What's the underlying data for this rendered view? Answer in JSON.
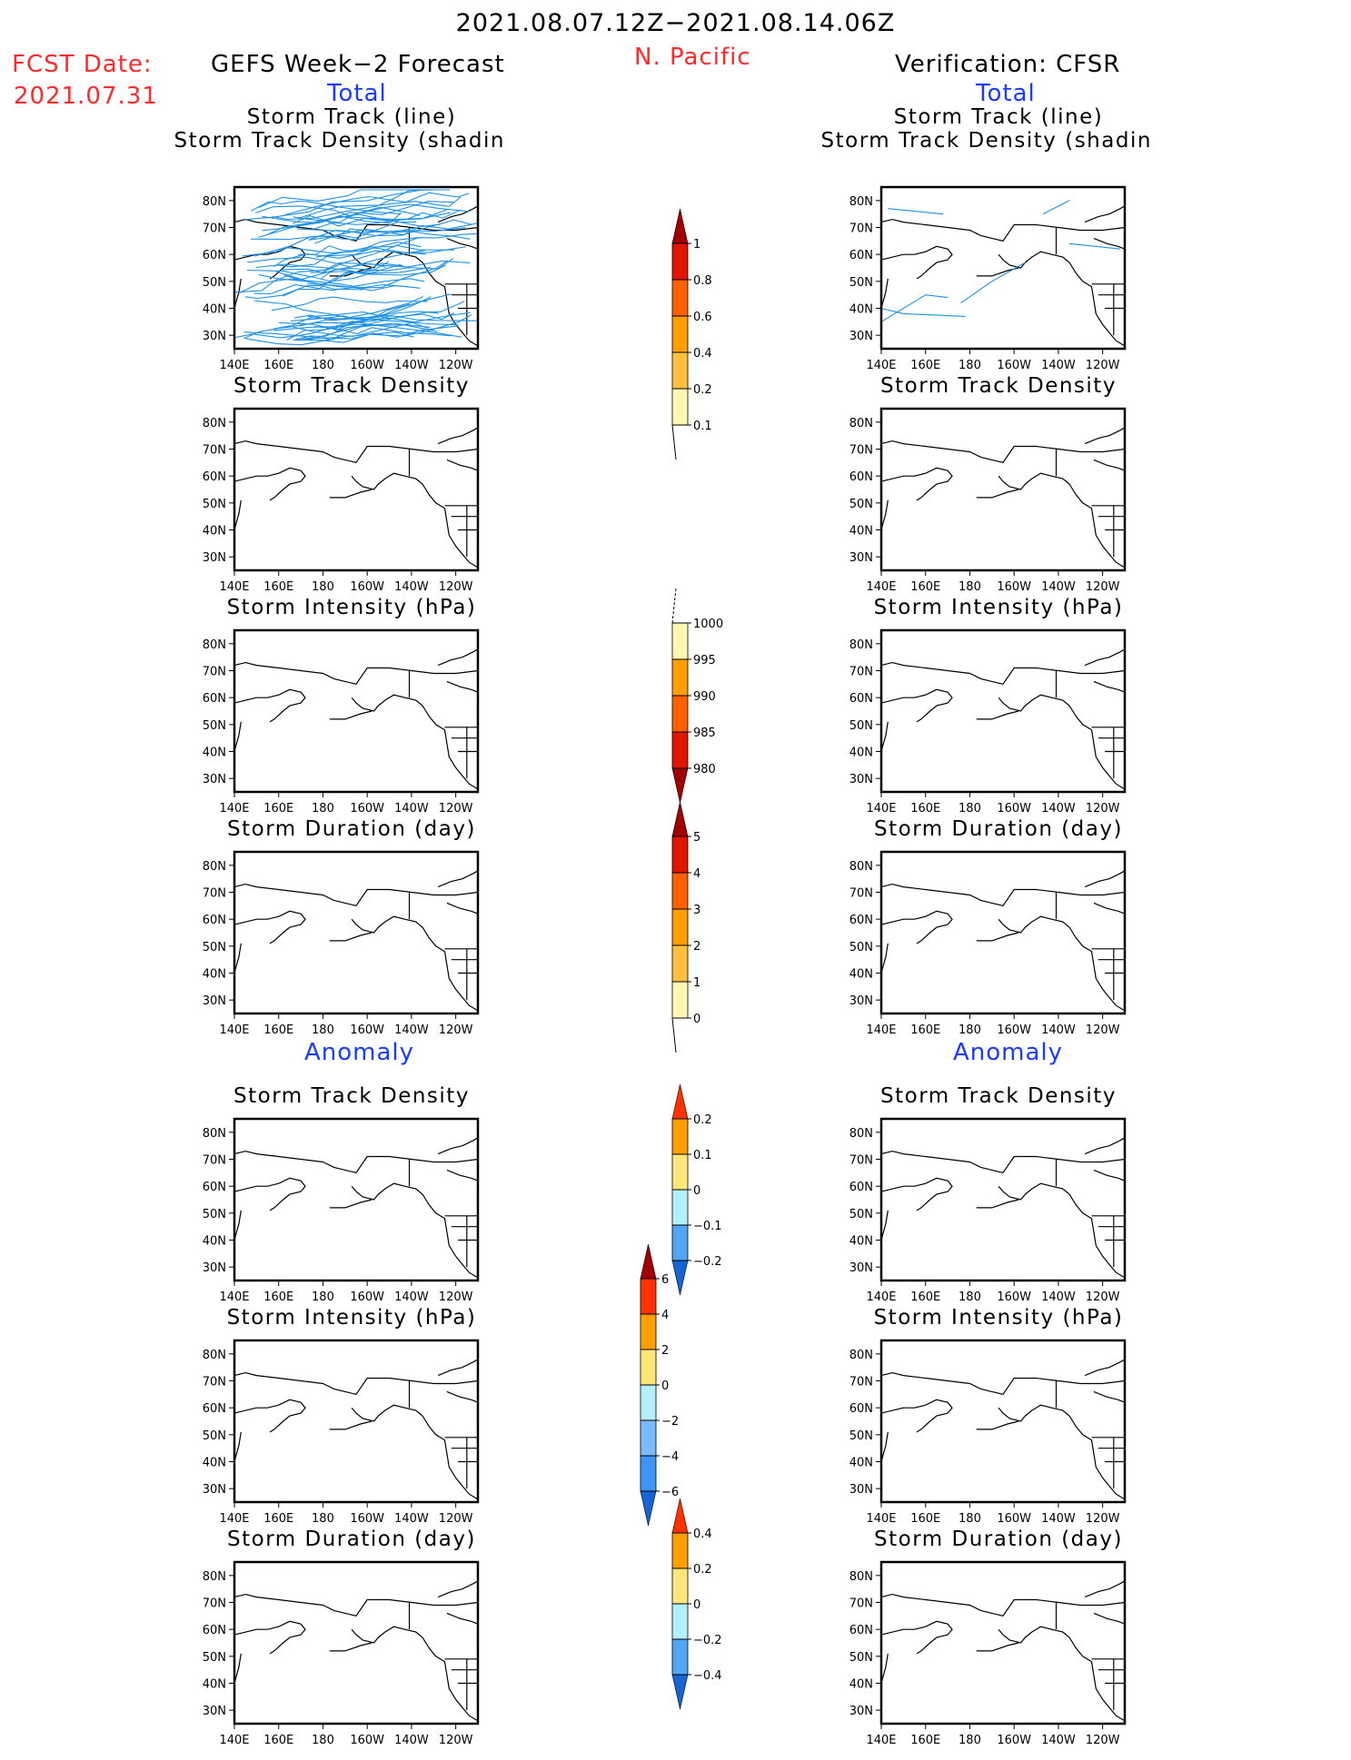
{
  "header": {
    "period": "2021.08.07.12Z−2021.08.14.06Z",
    "region": "N. Pacific",
    "fcst_label": "FCST Date:",
    "fcst_date": "2021.07.31",
    "left_title": "GEFS Week−2 Forecast",
    "right_title": "Verification: CFSR",
    "total_label": "Total",
    "anomaly_label": "Anomaly"
  },
  "colors": {
    "total_scale": [
      "#fff8b4",
      "#ffc03e",
      "#ffa000",
      "#ff6000",
      "#e01400",
      "#a00000"
    ],
    "anom_scale": [
      "#1764d4",
      "#53a5f5",
      "#b4f0fa",
      "#ffe67a",
      "#ffa000",
      "#ff3200"
    ],
    "int_anom_scale": [
      "#1764d4",
      "#3c96f5",
      "#7bbaff",
      "#b4f0fa",
      "#ffe67a",
      "#ffa000",
      "#ff3200",
      "#a00000"
    ],
    "track_line": "#1e90e6",
    "coast": "#000000"
  },
  "chart_data": {
    "type": "heatmap",
    "map_axes": {
      "x_ticks": [
        "140E",
        "160E",
        "180",
        "160W",
        "140W",
        "120W"
      ],
      "y_ticks": [
        "80N",
        "70N",
        "60N",
        "50N",
        "40N",
        "30N"
      ],
      "lon_range": [
        140,
        250
      ],
      "lat_range": [
        25,
        85
      ]
    },
    "panels": [
      {
        "id": "fc-track",
        "column": "GEFS Week-2 Forecast",
        "section": "Total",
        "title1": "Storm Track (line)",
        "title2": "Storm Track Density (shading)",
        "field": "density",
        "tracks": "many"
      },
      {
        "id": "ob-track",
        "column": "Verification: CFSR",
        "section": "Total",
        "title1": "Storm Track (line)",
        "title2": "Storm Track Density (shading)",
        "field": "density",
        "tracks": "few"
      },
      {
        "id": "fc-density",
        "column": "GEFS Week-2 Forecast",
        "section": "Total",
        "title1": "Storm Track Density",
        "field": "density"
      },
      {
        "id": "ob-density",
        "column": "Verification: CFSR",
        "section": "Total",
        "title1": "Storm Track Density",
        "field": "density"
      },
      {
        "id": "fc-intensity",
        "column": "GEFS Week-2 Forecast",
        "section": "Total",
        "title1": "Storm Intensity (hPa)",
        "field": "intensity"
      },
      {
        "id": "ob-intensity",
        "column": "Verification: CFSR",
        "section": "Total",
        "title1": "Storm Intensity (hPa)",
        "field": "intensity"
      },
      {
        "id": "fc-duration",
        "column": "GEFS Week-2 Forecast",
        "section": "Total",
        "title1": "Storm Duration (day)",
        "field": "duration"
      },
      {
        "id": "ob-duration",
        "column": "Verification: CFSR",
        "section": "Total",
        "title1": "Storm Duration (day)",
        "field": "duration"
      },
      {
        "id": "fc-density-anom",
        "column": "GEFS Week-2 Forecast",
        "section": "Anomaly",
        "title1": "Storm Track Density",
        "field": "density_anom"
      },
      {
        "id": "ob-density-anom",
        "column": "Verification: CFSR",
        "section": "Anomaly",
        "title1": "Storm Track Density",
        "field": "density_anom"
      },
      {
        "id": "fc-intensity-anom",
        "column": "GEFS Week-2 Forecast",
        "section": "Anomaly",
        "title1": "Storm Intensity (hPa)",
        "field": "intensity_anom"
      },
      {
        "id": "ob-intensity-anom",
        "column": "Verification: CFSR",
        "section": "Anomaly",
        "title1": "Storm Intensity (hPa)",
        "field": "intensity_anom"
      },
      {
        "id": "fc-duration-anom",
        "column": "GEFS Week-2 Forecast",
        "section": "Anomaly",
        "title1": "Storm Duration (day)",
        "field": "duration_anom"
      },
      {
        "id": "ob-duration-anom",
        "column": "Verification: CFSR",
        "section": "Anomaly",
        "title1": "Storm Duration (day)",
        "field": "duration_anom"
      }
    ],
    "colorbars": [
      {
        "id": "cb-density",
        "field": "density",
        "labels": [
          "1",
          "0.8",
          "0.6",
          "0.4",
          "0.2",
          "0.1"
        ],
        "extend": "max",
        "palette": "total_scale"
      },
      {
        "id": "cb-intensity",
        "field": "intensity",
        "labels": [
          "1000",
          "995",
          "990",
          "985",
          "980"
        ],
        "extend": "both-down",
        "palette": "total_scale"
      },
      {
        "id": "cb-duration",
        "field": "duration",
        "labels": [
          "5",
          "4",
          "3",
          "2",
          "1",
          "0"
        ],
        "extend": "max",
        "palette": "total_scale"
      },
      {
        "id": "cb-density-anom",
        "field": "density_anom",
        "labels": [
          "0.2",
          "0.1",
          "0",
          "−0.1",
          "−0.2"
        ],
        "extend": "both",
        "palette": "anom_scale"
      },
      {
        "id": "cb-intensity-anom",
        "field": "intensity_anom",
        "labels": [
          "6",
          "4",
          "2",
          "0",
          "−2",
          "−4",
          "−6"
        ],
        "extend": "both",
        "palette": "int_anom_scale"
      },
      {
        "id": "cb-duration-anom",
        "field": "duration_anom",
        "labels": [
          "0.4",
          "0.2",
          "0",
          "−0.2",
          "−0.4"
        ],
        "extend": "both",
        "palette": "anom_scale"
      }
    ]
  }
}
